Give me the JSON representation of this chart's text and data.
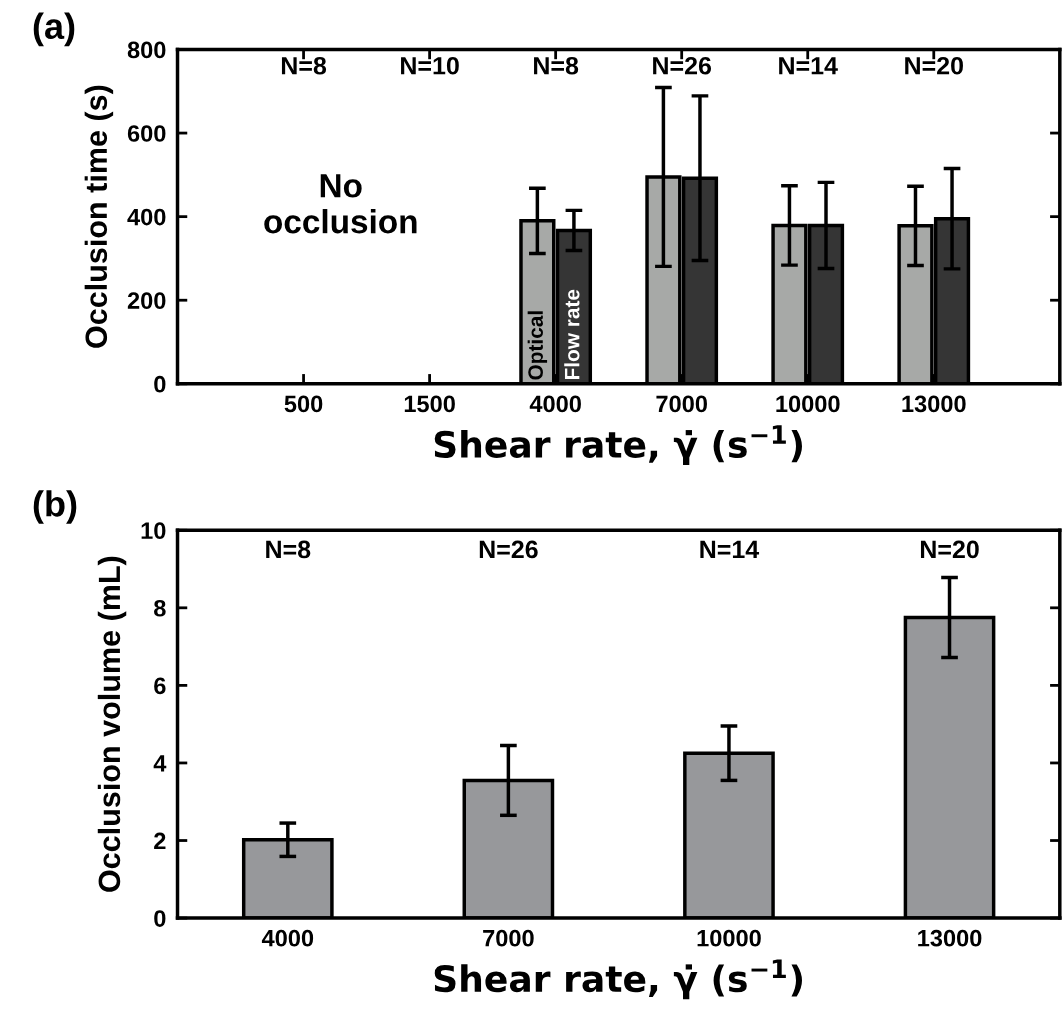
{
  "chart_data": [
    {
      "type": "bar",
      "title": "(a)",
      "xlabel": "Shear rate, γ̇ (s$^{−1}$)",
      "ylabel": "Occlusion time (s)",
      "categories": [
        "500",
        "1500",
        "4000",
        "7000",
        "10000",
        "13000"
      ],
      "series": [
        {
          "name": "Optical",
          "color": "#a7a9a7",
          "values": [
            null,
            null,
            390,
            495,
            379,
            378
          ],
          "errors": [
            null,
            null,
            78,
            214,
            95,
            95
          ]
        },
        {
          "name": "Flow rate",
          "color": "#353535",
          "values": [
            null,
            null,
            367,
            492,
            379,
            395
          ],
          "errors": [
            null,
            null,
            48,
            197,
            103,
            120
          ]
        }
      ],
      "ylim": [
        0,
        800
      ],
      "yticks": [
        0,
        200,
        400,
        600,
        800
      ],
      "grid": false,
      "legend": false,
      "annotations": [
        "N=8",
        "N=10",
        "N=8",
        "N=26",
        "N=14",
        "N=20",
        "No occlusion"
      ]
    },
    {
      "type": "bar",
      "title": "(b)",
      "xlabel": "Shear rate, γ̇ (s$^{−1}$)",
      "ylabel": "Occlusion volume (mL)",
      "categories": [
        "4000",
        "7000",
        "10000",
        "13000"
      ],
      "values": [
        2.02,
        3.55,
        4.25,
        7.75
      ],
      "errors": [
        0.43,
        0.9,
        0.7,
        1.03
      ],
      "color": "#97989b",
      "ylim": [
        0,
        10
      ],
      "yticks": [
        0,
        2,
        4,
        6,
        8,
        10
      ],
      "grid": false,
      "legend": false,
      "annotations": [
        "N=8",
        "N=26",
        "N=14",
        "N=20"
      ]
    }
  ]
}
